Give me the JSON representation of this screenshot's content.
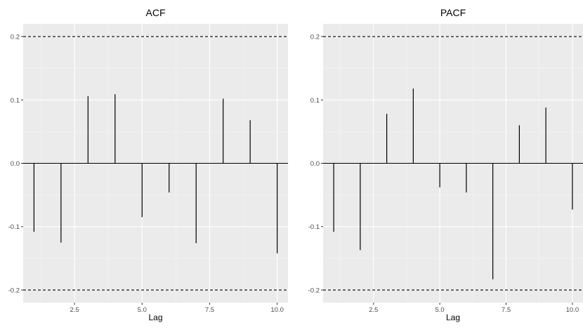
{
  "chart_data": [
    {
      "type": "bar",
      "title": "ACF",
      "xlabel": "Lag",
      "ylabel": "",
      "x": [
        1,
        2,
        3,
        4,
        5,
        6,
        7,
        8,
        9,
        10
      ],
      "values": [
        -0.108,
        -0.125,
        0.106,
        0.109,
        -0.085,
        -0.046,
        -0.126,
        0.102,
        0.068,
        -0.142
      ],
      "xlim": [
        0.6,
        10.4
      ],
      "ylim": [
        -0.22,
        0.22
      ],
      "xticks": [
        2.5,
        5.0,
        7.5,
        10.0
      ],
      "xtick_labels": [
        "2.5",
        "5.0",
        "7.5",
        "10.0"
      ],
      "yticks": [
        -0.2,
        -0.1,
        0.0,
        0.1,
        0.2
      ],
      "ytick_labels": [
        "-0.2",
        "-0.1",
        "0.0",
        "0.1",
        "0.2"
      ],
      "confidence_bounds": [
        -0.2,
        0.2
      ],
      "grid": true,
      "colors": {
        "panel": "#ebebeb",
        "grid_major": "#ffffff",
        "grid_minor": "#f5f5f5",
        "line": "#000000",
        "tick_text": "#4d4d4d"
      }
    },
    {
      "type": "bar",
      "title": "PACF",
      "xlabel": "Lag",
      "ylabel": "",
      "x": [
        1,
        2,
        3,
        4,
        5,
        6,
        7,
        8,
        9,
        10
      ],
      "values": [
        -0.108,
        -0.137,
        0.078,
        0.118,
        -0.038,
        -0.046,
        -0.183,
        0.06,
        0.088,
        -0.073
      ],
      "xlim": [
        0.6,
        10.4
      ],
      "ylim": [
        -0.22,
        0.22
      ],
      "xticks": [
        2.5,
        5.0,
        7.5,
        10.0
      ],
      "xtick_labels": [
        "2.5",
        "5.0",
        "7.5",
        "10.0"
      ],
      "yticks": [
        -0.2,
        -0.1,
        0.0,
        0.1,
        0.2
      ],
      "ytick_labels": [
        "-0.2",
        "-0.1",
        "0.0",
        "0.1",
        "0.2"
      ],
      "confidence_bounds": [
        -0.2,
        0.2
      ],
      "grid": true,
      "colors": {
        "panel": "#ebebeb",
        "grid_major": "#ffffff",
        "grid_minor": "#f5f5f5",
        "line": "#000000",
        "tick_text": "#4d4d4d"
      }
    }
  ]
}
